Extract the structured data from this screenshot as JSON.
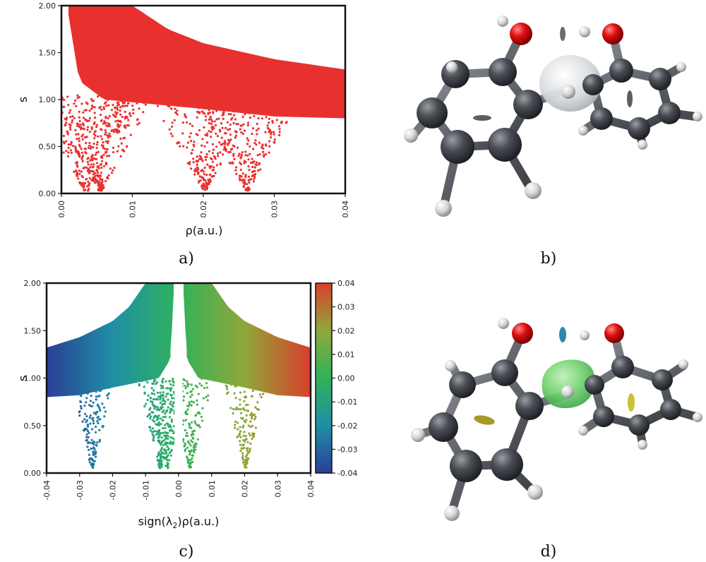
{
  "panel_labels": {
    "a": "a)",
    "b": "b)",
    "c": "c)",
    "d": "d)"
  },
  "chart_data": [
    {
      "id": "a",
      "type": "scatter",
      "title": "",
      "xlabel": "ρ(a.u.)",
      "ylabel": "s",
      "xlim": [
        0.0,
        0.04
      ],
      "ylim": [
        0.0,
        2.0
      ],
      "x_ticks": [
        "0.00",
        "0.01",
        "0.02",
        "0.03",
        "0.04"
      ],
      "y_ticks": [
        "0.00",
        "0.50",
        "1.00",
        "1.50",
        "2.00"
      ],
      "grid": false,
      "color": "#e8312f",
      "envelope_top": [
        [
          0.001,
          2.0
        ],
        [
          0.01,
          2.0
        ],
        [
          0.015,
          1.75
        ],
        [
          0.02,
          1.6
        ],
        [
          0.03,
          1.43
        ],
        [
          0.04,
          1.32
        ]
      ],
      "envelope_bottom": [
        [
          0.001,
          1.9
        ],
        [
          0.0025,
          1.2
        ],
        [
          0.006,
          1.0
        ],
        [
          0.02,
          0.9
        ],
        [
          0.03,
          0.82
        ],
        [
          0.04,
          0.8
        ]
      ],
      "spikes": [
        {
          "center": 0.0035,
          "min_s": 0.03
        },
        {
          "center": 0.0055,
          "min_s": 0.03
        },
        {
          "center": 0.0202,
          "min_s": 0.04
        },
        {
          "center": 0.0262,
          "min_s": 0.03
        }
      ]
    },
    {
      "id": "c",
      "type": "scatter",
      "title": "",
      "xlabel": "sign(λ2)ρ(a.u.)",
      "ylabel": "s",
      "xlim": [
        -0.04,
        0.04
      ],
      "ylim": [
        0.0,
        2.0
      ],
      "x_ticks": [
        "-0.04",
        "-0.03",
        "-0.02",
        "-0.01",
        "0.00",
        "0.01",
        "0.02",
        "0.03",
        "0.04"
      ],
      "y_ticks": [
        "0.00",
        "0.50",
        "1.00",
        "1.50",
        "2.00"
      ],
      "grid": false,
      "colorbar": {
        "ticks": [
          "0.04",
          "0.03",
          "0.02",
          "0.01",
          "0.00",
          "-0.01",
          "-0.02",
          "-0.03",
          "-0.04"
        ],
        "range": [
          -0.04,
          0.04
        ],
        "colors": [
          "#2a3f97",
          "#1f8fa5",
          "#2fb25a",
          "#8fa83a",
          "#d9402c"
        ]
      },
      "spikes": [
        {
          "center": -0.0262,
          "min_s": 0.05
        },
        {
          "center": -0.0055,
          "min_s": 0.05
        },
        {
          "center": -0.0035,
          "min_s": 0.05
        },
        {
          "center": 0.0035,
          "min_s": 0.05
        },
        {
          "center": 0.0202,
          "min_s": 0.05
        }
      ]
    }
  ],
  "molecules": [
    {
      "id": "b",
      "isosurface": "gray"
    },
    {
      "id": "d",
      "isosurface": "green"
    }
  ]
}
